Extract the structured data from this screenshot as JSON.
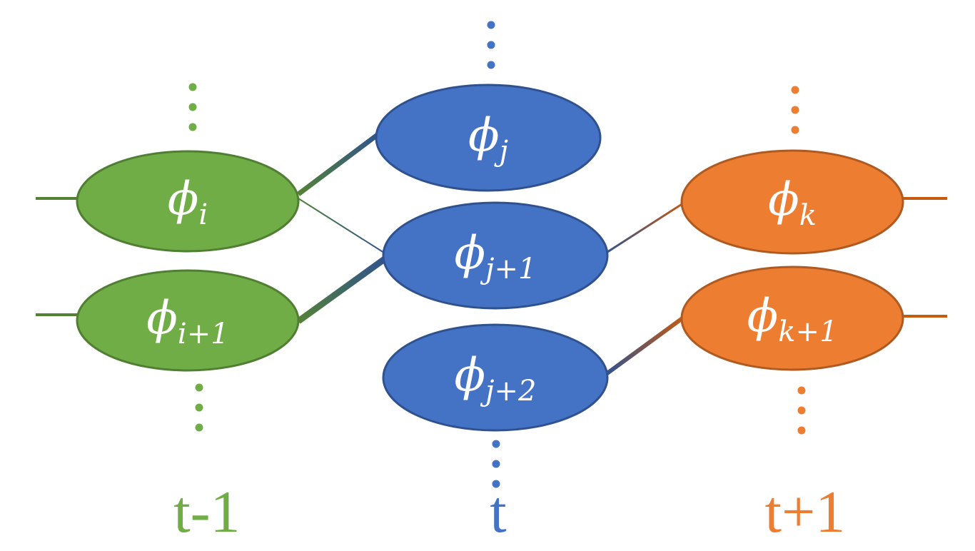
{
  "colors": {
    "green": "#70ad47",
    "green_stroke": "#507e32",
    "blue": "#4472c4",
    "blue_stroke": "#2f528f",
    "orange": "#ed7d31",
    "orange_stroke": "#ae5a21"
  },
  "columns": [
    {
      "id": "t_minus_1",
      "label": "t-1",
      "color": "green"
    },
    {
      "id": "t",
      "label": "t",
      "color": "blue"
    },
    {
      "id": "t_plus_1",
      "label": "t+1",
      "color": "orange"
    }
  ],
  "nodes": [
    {
      "id": "phi_i",
      "column": "t_minus_1",
      "symbol": "ϕ",
      "subscript": "i"
    },
    {
      "id": "phi_i1",
      "column": "t_minus_1",
      "symbol": "ϕ",
      "subscript": "i+1"
    },
    {
      "id": "phi_j",
      "column": "t",
      "symbol": "ϕ",
      "subscript": "j"
    },
    {
      "id": "phi_j1",
      "column": "t",
      "symbol": "ϕ",
      "subscript": "j+1"
    },
    {
      "id": "phi_j2",
      "column": "t",
      "symbol": "ϕ",
      "subscript": "j+2"
    },
    {
      "id": "phi_k",
      "column": "t_plus_1",
      "symbol": "ϕ",
      "subscript": "k"
    },
    {
      "id": "phi_k1",
      "column": "t_plus_1",
      "symbol": "ϕ",
      "subscript": "k+1"
    }
  ],
  "edges": [
    {
      "from": "phi_i",
      "to": "phi_j",
      "weight": "heavy"
    },
    {
      "from": "phi_i",
      "to": "phi_j1",
      "weight": "light"
    },
    {
      "from": "phi_i1",
      "to": "phi_j1",
      "weight": "heavy"
    },
    {
      "from": "phi_j1",
      "to": "phi_k",
      "weight": "light"
    },
    {
      "from": "phi_j2",
      "to": "phi_k1",
      "weight": "heavy"
    }
  ]
}
